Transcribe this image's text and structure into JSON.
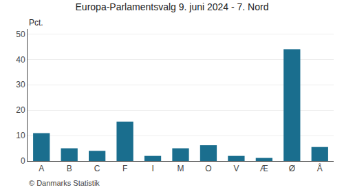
{
  "chart_data": {
    "type": "bar",
    "title": "Europa-Parlamentsvalg 9. juni 2024 - 7. Nord",
    "categories": [
      "A",
      "B",
      "C",
      "F",
      "I",
      "M",
      "O",
      "V",
      "Æ",
      "Ø",
      "Å"
    ],
    "values": [
      11.0,
      5.0,
      4.0,
      15.5,
      2.0,
      5.0,
      6.2,
      2.0,
      1.2,
      44.0,
      5.5
    ],
    "color": "#1a6e8e",
    "ylabel": "Pct.",
    "ylim": [
      0,
      52
    ],
    "yticks": [
      0,
      10,
      20,
      30,
      40,
      50
    ],
    "grid": true,
    "annotations": [
      "© Danmarks Statistik"
    ]
  }
}
